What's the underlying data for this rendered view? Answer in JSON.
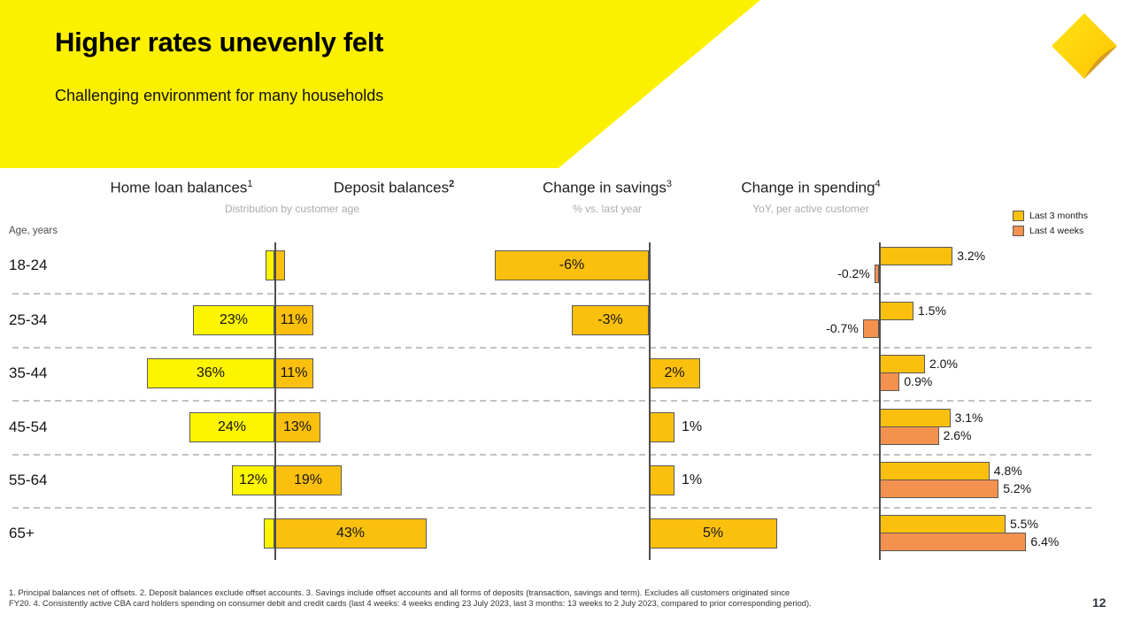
{
  "slide": {
    "title": "Higher rates unevenly felt",
    "subtitle": "Challenging environment for many households",
    "page_number": "12",
    "footnotes": [
      "1. Principal balances net of offsets.  2. Deposit balances exclude offset accounts.  3. Savings include offset accounts and all forms of deposits (transaction, savings and term). Excludes all customers originated since",
      "FY20.  4. Consistently active CBA card holders spending on consumer debit and credit cards (last 4 weeks: 4 weeks ending 23 July 2023, last 3 months: 13 weeks to 2 July 2023, compared to prior corresponding period)."
    ]
  },
  "colors": {
    "header_yellow": "#FBF000",
    "bright_yellow": "#FDF400",
    "amber": "#FBC00D",
    "salmon": "#F5914E",
    "bar_border": "#595959",
    "logo_gold": "#FFCC00"
  },
  "chart_data": {
    "type": "bar",
    "orientation": "horizontal",
    "categories": [
      "18-24",
      "25-34",
      "35-44",
      "45-54",
      "55-64",
      "65+"
    ],
    "rows_axis_label": "Age, years",
    "charts": [
      {
        "title": "Home loan balances",
        "sup": "1",
        "subtitle": "Distribution by customer age",
        "values": [
          2.5,
          23,
          36,
          24,
          12,
          3
        ],
        "labels": [
          "",
          "23%",
          "36%",
          "24%",
          "12%",
          ""
        ]
      },
      {
        "title": "Deposit balances",
        "sup": "2",
        "subtitle": "Distribution by customer age",
        "values": [
          3,
          11,
          11,
          13,
          19,
          43
        ],
        "labels": [
          "",
          "11%",
          "11%",
          "13%",
          "19%",
          "43%"
        ]
      },
      {
        "title": "Change in savings",
        "sup": "3",
        "subtitle": "% vs. last year",
        "values": [
          -6,
          -3,
          2,
          1,
          1,
          5
        ],
        "labels": [
          "-6%",
          "-3%",
          "2%",
          "1%",
          "1%",
          "5%"
        ]
      },
      {
        "title": "Change in spending",
        "sup": "4",
        "subtitle": "YoY, per active customer",
        "series": [
          {
            "name": "Last 3 months",
            "values": [
              3.2,
              1.5,
              2.0,
              3.1,
              4.8,
              5.5
            ],
            "labels": [
              "3.2%",
              "1.5%",
              "2.0%",
              "3.1%",
              "4.8%",
              "5.5%"
            ]
          },
          {
            "name": "Last 4 weeks",
            "values": [
              -0.2,
              -0.7,
              0.9,
              2.6,
              5.2,
              6.4
            ],
            "labels": [
              "-0.2%",
              "-0.7%",
              "0.9%",
              "2.6%",
              "5.2%",
              "6.4%"
            ]
          }
        ]
      }
    ]
  }
}
